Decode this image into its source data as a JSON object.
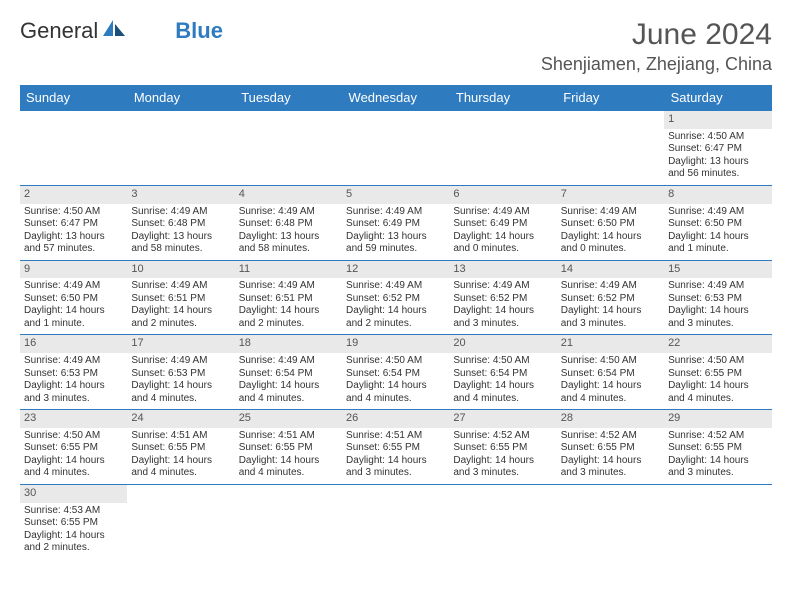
{
  "header": {
    "logo_left": "General",
    "logo_right": "Blue",
    "month_title": "June 2024",
    "location": "Shenjiamen, Zhejiang, China"
  },
  "colors": {
    "brand_blue": "#2f7bbf",
    "daynum_bg": "#e9e9e9",
    "text": "#333333",
    "muted": "#555555"
  },
  "weekdays": [
    "Sunday",
    "Monday",
    "Tuesday",
    "Wednesday",
    "Thursday",
    "Friday",
    "Saturday"
  ],
  "days": [
    {
      "n": 1,
      "sr": "4:50 AM",
      "ss": "6:47 PM",
      "dl": "13 hours and 56 minutes."
    },
    {
      "n": 2,
      "sr": "4:50 AM",
      "ss": "6:47 PM",
      "dl": "13 hours and 57 minutes."
    },
    {
      "n": 3,
      "sr": "4:49 AM",
      "ss": "6:48 PM",
      "dl": "13 hours and 58 minutes."
    },
    {
      "n": 4,
      "sr": "4:49 AM",
      "ss": "6:48 PM",
      "dl": "13 hours and 58 minutes."
    },
    {
      "n": 5,
      "sr": "4:49 AM",
      "ss": "6:49 PM",
      "dl": "13 hours and 59 minutes."
    },
    {
      "n": 6,
      "sr": "4:49 AM",
      "ss": "6:49 PM",
      "dl": "14 hours and 0 minutes."
    },
    {
      "n": 7,
      "sr": "4:49 AM",
      "ss": "6:50 PM",
      "dl": "14 hours and 0 minutes."
    },
    {
      "n": 8,
      "sr": "4:49 AM",
      "ss": "6:50 PM",
      "dl": "14 hours and 1 minute."
    },
    {
      "n": 9,
      "sr": "4:49 AM",
      "ss": "6:50 PM",
      "dl": "14 hours and 1 minute."
    },
    {
      "n": 10,
      "sr": "4:49 AM",
      "ss": "6:51 PM",
      "dl": "14 hours and 2 minutes."
    },
    {
      "n": 11,
      "sr": "4:49 AM",
      "ss": "6:51 PM",
      "dl": "14 hours and 2 minutes."
    },
    {
      "n": 12,
      "sr": "4:49 AM",
      "ss": "6:52 PM",
      "dl": "14 hours and 2 minutes."
    },
    {
      "n": 13,
      "sr": "4:49 AM",
      "ss": "6:52 PM",
      "dl": "14 hours and 3 minutes."
    },
    {
      "n": 14,
      "sr": "4:49 AM",
      "ss": "6:52 PM",
      "dl": "14 hours and 3 minutes."
    },
    {
      "n": 15,
      "sr": "4:49 AM",
      "ss": "6:53 PM",
      "dl": "14 hours and 3 minutes."
    },
    {
      "n": 16,
      "sr": "4:49 AM",
      "ss": "6:53 PM",
      "dl": "14 hours and 3 minutes."
    },
    {
      "n": 17,
      "sr": "4:49 AM",
      "ss": "6:53 PM",
      "dl": "14 hours and 4 minutes."
    },
    {
      "n": 18,
      "sr": "4:49 AM",
      "ss": "6:54 PM",
      "dl": "14 hours and 4 minutes."
    },
    {
      "n": 19,
      "sr": "4:50 AM",
      "ss": "6:54 PM",
      "dl": "14 hours and 4 minutes."
    },
    {
      "n": 20,
      "sr": "4:50 AM",
      "ss": "6:54 PM",
      "dl": "14 hours and 4 minutes."
    },
    {
      "n": 21,
      "sr": "4:50 AM",
      "ss": "6:54 PM",
      "dl": "14 hours and 4 minutes."
    },
    {
      "n": 22,
      "sr": "4:50 AM",
      "ss": "6:55 PM",
      "dl": "14 hours and 4 minutes."
    },
    {
      "n": 23,
      "sr": "4:50 AM",
      "ss": "6:55 PM",
      "dl": "14 hours and 4 minutes."
    },
    {
      "n": 24,
      "sr": "4:51 AM",
      "ss": "6:55 PM",
      "dl": "14 hours and 4 minutes."
    },
    {
      "n": 25,
      "sr": "4:51 AM",
      "ss": "6:55 PM",
      "dl": "14 hours and 4 minutes."
    },
    {
      "n": 26,
      "sr": "4:51 AM",
      "ss": "6:55 PM",
      "dl": "14 hours and 3 minutes."
    },
    {
      "n": 27,
      "sr": "4:52 AM",
      "ss": "6:55 PM",
      "dl": "14 hours and 3 minutes."
    },
    {
      "n": 28,
      "sr": "4:52 AM",
      "ss": "6:55 PM",
      "dl": "14 hours and 3 minutes."
    },
    {
      "n": 29,
      "sr": "4:52 AM",
      "ss": "6:55 PM",
      "dl": "14 hours and 3 minutes."
    },
    {
      "n": 30,
      "sr": "4:53 AM",
      "ss": "6:55 PM",
      "dl": "14 hours and 2 minutes."
    }
  ],
  "labels": {
    "sunrise": "Sunrise:",
    "sunset": "Sunset:",
    "daylight": "Daylight:"
  },
  "layout": {
    "first_day_column": 6,
    "rows": 6,
    "cols": 7
  }
}
